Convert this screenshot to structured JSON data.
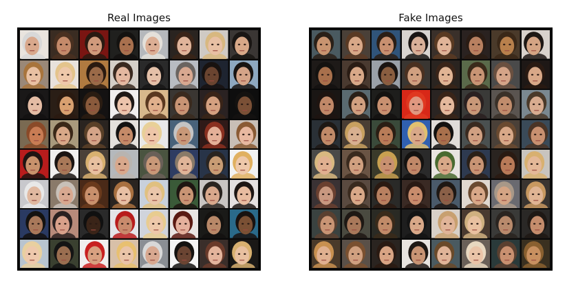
{
  "panels": [
    {
      "id": "real",
      "title": "Real Images",
      "grid_rows": 8,
      "grid_cols": 8,
      "tiles": [
        {
          "bg": "#e9e4de",
          "skin": "#d9a88c",
          "hair": "#d8d8d8"
        },
        {
          "bg": "#3a2c22",
          "skin": "#c48a6a",
          "hair": "#4a3020"
        },
        {
          "bg": "#7a1512",
          "skin": "#d09a7c",
          "hair": "#2a1a12"
        },
        {
          "bg": "#20201e",
          "skin": "#a8704e",
          "hair": "#141210"
        },
        {
          "bg": "#b5b8bc",
          "skin": "#dcae94",
          "hair": "#e4e0da"
        },
        {
          "bg": "#2a2420",
          "skin": "#e0b49a",
          "hair": "#3a2418"
        },
        {
          "bg": "#cfcac4",
          "skin": "#e8c0a4",
          "hair": "#d8b880"
        },
        {
          "bg": "#3a3634",
          "skin": "#d8a888",
          "hair": "#1a1614"
        },
        {
          "bg": "#9a8878",
          "skin": "#e8c0a2",
          "hair": "#a8743c"
        },
        {
          "bg": "#e8e2dc",
          "skin": "#eec8aa",
          "hair": "#e4c48c"
        },
        {
          "bg": "#b07a40",
          "skin": "#9a6a48",
          "hair": "#2a1a10"
        },
        {
          "bg": "#d4cfc8",
          "skin": "#e4b8a0",
          "hair": "#3a2a20"
        },
        {
          "bg": "#2a2a2a",
          "skin": "#e4c0a8",
          "hair": "#181616"
        },
        {
          "bg": "#b8bcc2",
          "skin": "#d8a890",
          "hair": "#6a6460"
        },
        {
          "bg": "#1e2430",
          "skin": "#6a4430",
          "hair": "#181210"
        },
        {
          "bg": "#8ea8c0",
          "skin": "#d4a488",
          "hair": "#181412"
        },
        {
          "bg": "#1a1818",
          "skin": "#e4bca4",
          "hair": "#141212"
        },
        {
          "bg": "#2a1e16",
          "skin": "#d8a070",
          "hair": "#2a1a10"
        },
        {
          "bg": "#141212",
          "skin": "#8a5a3c",
          "hair": "#2a1c12"
        },
        {
          "bg": "#f0eeee",
          "skin": "#ecc4ac",
          "hair": "#1e1816"
        },
        {
          "bg": "#d8b88c",
          "skin": "#e0b08c",
          "hair": "#5a3820"
        },
        {
          "bg": "#3a3632",
          "skin": "#c89474",
          "hair": "#3a2a1e"
        },
        {
          "bg": "#2a2222",
          "skin": "#d4a080",
          "hair": "#3a2418"
        },
        {
          "bg": "#0e0e0e",
          "skin": "#7a5036",
          "hair": "#141210"
        },
        {
          "bg": "#7a6a52",
          "skin": "#c87c54",
          "hair": "#8a4a28"
        },
        {
          "bg": "#a89a7c",
          "skin": "#d8a888",
          "hair": "#3a2818"
        },
        {
          "bg": "#2a2420",
          "skin": "#d4a488",
          "hair": "#5a4028"
        },
        {
          "bg": "#e4e0dc",
          "skin": "#c48a68",
          "hair": "#141212"
        },
        {
          "bg": "#e8e8e8",
          "skin": "#eec6a8",
          "hair": "#e8d098"
        },
        {
          "bg": "#48627a",
          "skin": "#c89878",
          "hair": "#c4c4c4"
        },
        {
          "bg": "#301a18",
          "skin": "#e4b098",
          "hair": "#8a3020"
        },
        {
          "bg": "#c8beb6",
          "skin": "#e8b8a0",
          "hair": "#8a5a34"
        },
        {
          "bg": "#b81c1c",
          "skin": "#c8926c",
          "hair": "#1e1412"
        },
        {
          "bg": "#f0efee",
          "skin": "#a87858",
          "hair": "#1a1412"
        },
        {
          "bg": "#4a4038",
          "skin": "#e8c0a0",
          "hair": "#d8b070"
        },
        {
          "bg": "#b4b8bc",
          "skin": "#d8a88c",
          "hair": "#b8b4b0"
        },
        {
          "bg": "#4a5440",
          "skin": "#c89878",
          "hair": "#6a6058"
        },
        {
          "bg": "#2e3c62",
          "skin": "#e0b498",
          "hair": "#8a7a68"
        },
        {
          "bg": "#283448",
          "skin": "#c89c74",
          "hair": "#2a2420"
        },
        {
          "bg": "#f2f2f2",
          "skin": "#eec8aa",
          "hair": "#e0b060"
        },
        {
          "bg": "#c8c8cc",
          "skin": "#e0b8a0",
          "hair": "#e8e8e8"
        },
        {
          "bg": "#8a7a6a",
          "skin": "#d8a890",
          "hair": "#c8c0b8"
        },
        {
          "bg": "#4a2a18",
          "skin": "#c8906c",
          "hair": "#6a3a1c"
        },
        {
          "bg": "#2a2420",
          "skin": "#e8c0a4",
          "hair": "#a87040"
        },
        {
          "bg": "#c8d0dc",
          "skin": "#eac6aa",
          "hair": "#e0c080"
        },
        {
          "bg": "#3a5a38",
          "skin": "#c89474",
          "hair": "#1e1612"
        },
        {
          "bg": "#c8c4c2",
          "skin": "#d8a88c",
          "hair": "#2a2420"
        },
        {
          "bg": "#e4e0e0",
          "skin": "#e8bca0",
          "hair": "#1e1614"
        },
        {
          "bg": "#2a3a62",
          "skin": "#a8785a",
          "hair": "#141210"
        },
        {
          "bg": "#b88a7a",
          "skin": "#d8a08a",
          "hair": "#2a2020"
        },
        {
          "bg": "#2a2a2a",
          "skin": "#3a2418",
          "hair": "#101010"
        },
        {
          "bg": "#e4e4e8",
          "skin": "#c88a6c",
          "hair": "#b81c1c"
        },
        {
          "bg": "#d0d4dc",
          "skin": "#eec8aa",
          "hair": "#e8cc90"
        },
        {
          "bg": "#e8e4e2",
          "skin": "#e4b09c",
          "hair": "#5a1a12"
        },
        {
          "bg": "#1a1a18",
          "skin": "#b88868",
          "hair": "#141210"
        },
        {
          "bg": "#2a6a8a",
          "skin": "#7a5034",
          "hair": "#181210"
        },
        {
          "bg": "#b8c4d0",
          "skin": "#eec8ac",
          "hair": "#e8d0a0"
        },
        {
          "bg": "#3a4030",
          "skin": "#9a6e50",
          "hair": "#141414"
        },
        {
          "bg": "#f0eeee",
          "skin": "#d8a080",
          "hair": "#c82020"
        },
        {
          "bg": "#d8c0a8",
          "skin": "#eac4a8",
          "hair": "#e8c070"
        },
        {
          "bg": "#8a8e94",
          "skin": "#d8a890",
          "hair": "#d8d8d8"
        },
        {
          "bg": "#f4f4f4",
          "skin": "#6a4432",
          "hair": "#141210"
        },
        {
          "bg": "#3a2e2a",
          "skin": "#e4b49c",
          "hair": "#6a3a2a"
        },
        {
          "bg": "#1a1816",
          "skin": "#e8c0a0",
          "hair": "#d8b070"
        }
      ]
    },
    {
      "id": "fake",
      "title": "Fake Images",
      "grid_rows": 8,
      "grid_cols": 8,
      "tiles": [
        {
          "bg": "#4a5a60",
          "skin": "#c89470",
          "hair": "#2a2018"
        },
        {
          "bg": "#4a4038",
          "skin": "#d8a888",
          "hair": "#5a3a24"
        },
        {
          "bg": "#30547a",
          "skin": "#c89070",
          "hair": "#2a1e16"
        },
        {
          "bg": "#d8d4d0",
          "skin": "#d8b098",
          "hair": "#1a1614"
        },
        {
          "bg": "#3a302a",
          "skin": "#e0b498",
          "hair": "#5a3a22"
        },
        {
          "bg": "#2a2220",
          "skin": "#b88060",
          "hair": "#2a1c14"
        },
        {
          "bg": "#4a3a2a",
          "skin": "#b8804c",
          "hair": "#3a2818"
        },
        {
          "bg": "#d8d2cc",
          "skin": "#d4a484",
          "hair": "#1e1814"
        },
        {
          "bg": "#1e1a18",
          "skin": "#a8704c",
          "hair": "#141210"
        },
        {
          "bg": "#4a3a30",
          "skin": "#d8a888",
          "hair": "#2a1c14"
        },
        {
          "bg": "#9aa0a8",
          "skin": "#8a5e40",
          "hair": "#1a1412"
        },
        {
          "bg": "#3a3632",
          "skin": "#d0a080",
          "hair": "#4a3020"
        },
        {
          "bg": "#2a2420",
          "skin": "#e0b494",
          "hair": "#3a2418"
        },
        {
          "bg": "#5a6a4a",
          "skin": "#c89474",
          "hair": "#3a2a1a"
        },
        {
          "bg": "#4a4a4a",
          "skin": "#d4a488",
          "hair": "#6a5040"
        },
        {
          "bg": "#1e1816",
          "skin": "#d8a888",
          "hair": "#2a1a12"
        },
        {
          "bg": "#1a1614",
          "skin": "#c08868",
          "hair": "#1e1410"
        },
        {
          "bg": "#5a6a70",
          "skin": "#d0a080",
          "hair": "#2a2018"
        },
        {
          "bg": "#1e1e1c",
          "skin": "#c89070",
          "hair": "#141210"
        },
        {
          "bg": "#d82818",
          "skin": "#e09880",
          "hair": "#e03820"
        },
        {
          "bg": "#2a2422",
          "skin": "#e4b89c",
          "hair": "#3a2418"
        },
        {
          "bg": "#3a3a38",
          "skin": "#c89878",
          "hair": "#2a2020"
        },
        {
          "bg": "#5a5450",
          "skin": "#c08c6c",
          "hair": "#3a3028"
        },
        {
          "bg": "#7a8890",
          "skin": "#d8ac90",
          "hair": "#4a3a2a"
        },
        {
          "bg": "#2a3036",
          "skin": "#c08a68",
          "hair": "#1e1814"
        },
        {
          "bg": "#4a3e34",
          "skin": "#d8b090",
          "hair": "#c8a060"
        },
        {
          "bg": "#3a4a3a",
          "skin": "#b87c58",
          "hair": "#2a1e14"
        },
        {
          "bg": "#3060b0",
          "skin": "#d8a888",
          "hair": "#e0c070"
        },
        {
          "bg": "#e0dcd8",
          "skin": "#a8704c",
          "hair": "#141210"
        },
        {
          "bg": "#4a5050",
          "skin": "#d0a082",
          "hair": "#3a2a20"
        },
        {
          "bg": "#4a4038",
          "skin": "#d8a888",
          "hair": "#6a4a30"
        },
        {
          "bg": "#3a4a58",
          "skin": "#c89070",
          "hair": "#4a3426"
        },
        {
          "bg": "#4a4a48",
          "skin": "#e0b090",
          "hair": "#d8b880"
        },
        {
          "bg": "#6a5444",
          "skin": "#d0a080",
          "hair": "#3a2a1e"
        },
        {
          "bg": "#3a3a2a",
          "skin": "#c89070",
          "hair": "#c8a050"
        },
        {
          "bg": "#2a2a2a",
          "skin": "#c08868",
          "hair": "#141210"
        },
        {
          "bg": "#e8e4e0",
          "skin": "#d8a888",
          "hair": "#4a6a30"
        },
        {
          "bg": "#2e3a50",
          "skin": "#c89474",
          "hair": "#2a2018"
        },
        {
          "bg": "#2a2420",
          "skin": "#b87a58",
          "hair": "#2a1a12"
        },
        {
          "bg": "#c8c4be",
          "skin": "#e4b898",
          "hair": "#d8b070"
        },
        {
          "bg": "#3a3234",
          "skin": "#c89880",
          "hair": "#6a4030"
        },
        {
          "bg": "#5a4a40",
          "skin": "#d8a888",
          "hair": "#3a2a1e"
        },
        {
          "bg": "#2a2a28",
          "skin": "#b88060",
          "hair": "#2a1a12"
        },
        {
          "bg": "#3a2a24",
          "skin": "#c88c6c",
          "hair": "#2a1a14"
        },
        {
          "bg": "#4a5a6a",
          "skin": "#8a6048",
          "hair": "#1e1814"
        },
        {
          "bg": "#e0d8d0",
          "skin": "#d8a888",
          "hair": "#6a4a30"
        },
        {
          "bg": "#6a6a70",
          "skin": "#d4a484",
          "hair": "#a89888"
        },
        {
          "bg": "#3a3430",
          "skin": "#e0b494",
          "hair": "#c89860"
        },
        {
          "bg": "#3a4240",
          "skin": "#c89474",
          "hair": "#5a4030"
        },
        {
          "bg": "#4a4a40",
          "skin": "#a8785a",
          "hair": "#1e1814"
        },
        {
          "bg": "#2a2a24",
          "skin": "#c08a68",
          "hair": "#3a2a1a"
        },
        {
          "bg": "#1e1e1e",
          "skin": "#d8a888",
          "hair": "#141414"
        },
        {
          "bg": "#d8d0c8",
          "skin": "#e0b498",
          "hair": "#c8a070"
        },
        {
          "bg": "#4a3a30",
          "skin": "#e8c0a0",
          "hair": "#d0b080"
        },
        {
          "bg": "#3a3a38",
          "skin": "#b88a6c",
          "hair": "#2a2420"
        },
        {
          "bg": "#2a2826",
          "skin": "#c48c6c",
          "hair": "#1e1814"
        },
        {
          "bg": "#4a3a2a",
          "skin": "#e0b090",
          "hair": "#c89050"
        },
        {
          "bg": "#5a5048",
          "skin": "#d0a080",
          "hair": "#7a5030"
        },
        {
          "bg": "#2a2420",
          "skin": "#d8a484",
          "hair": "#2a1a12"
        },
        {
          "bg": "#e8e4e0",
          "skin": "#c89474",
          "hair": "#1e1814"
        },
        {
          "bg": "#4a5a60",
          "skin": "#e0b498",
          "hair": "#6a4a2a"
        },
        {
          "bg": "#6a6058",
          "skin": "#eac4a8",
          "hair": "#e8d8c0"
        },
        {
          "bg": "#2a3a3a",
          "skin": "#c89070",
          "hair": "#5a4030"
        },
        {
          "bg": "#3a3020",
          "skin": "#c89060",
          "hair": "#8a6030"
        }
      ]
    }
  ]
}
